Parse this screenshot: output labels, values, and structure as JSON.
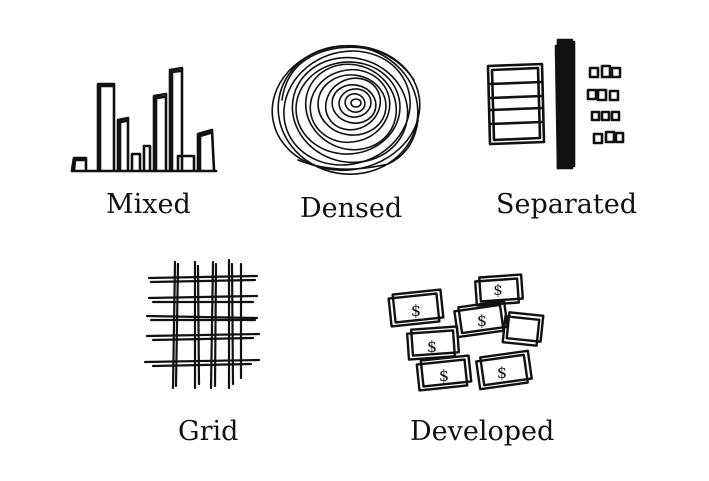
{
  "palette": {
    "ink": "#111111",
    "background": "#ffffff"
  },
  "panels": [
    {
      "label": "Mixed",
      "icon": "mixed-buildings-sketch"
    },
    {
      "label": "Densed",
      "icon": "dense-scribble-sketch"
    },
    {
      "label": "Separated",
      "icon": "separated-blocks-sketch"
    },
    {
      "label": "Grid",
      "icon": "grid-sketch"
    },
    {
      "label": "Developed",
      "icon": "developed-money-sketch"
    }
  ]
}
